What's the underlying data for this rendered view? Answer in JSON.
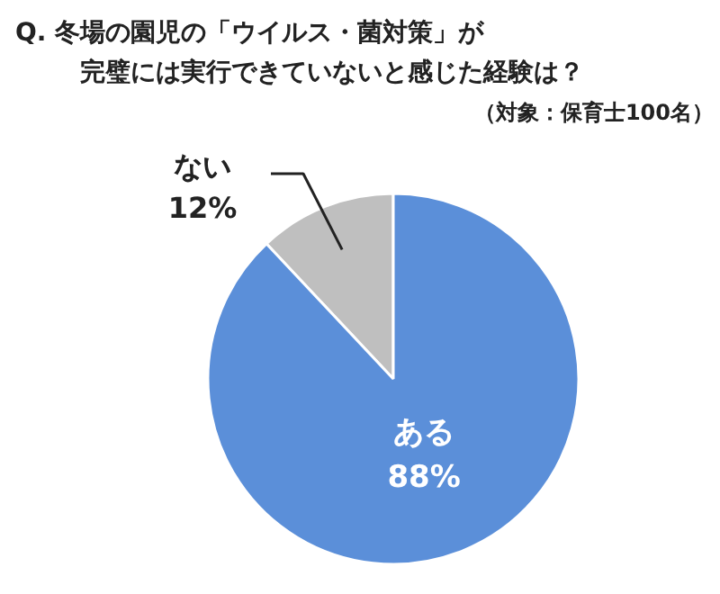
{
  "chart_data": {
    "type": "pie",
    "title": "Q.  冬場の園児の「ウイルス・菌対策」が完璧には実行できていないと感じた経験は？",
    "subtitle": "（対象：保育士100名）",
    "categories": [
      "ある",
      "ない"
    ],
    "values": [
      88,
      12
    ],
    "colors": [
      "#5b8fd9",
      "#bfbfbf"
    ],
    "value_labels": [
      "88%",
      "12%"
    ]
  }
}
